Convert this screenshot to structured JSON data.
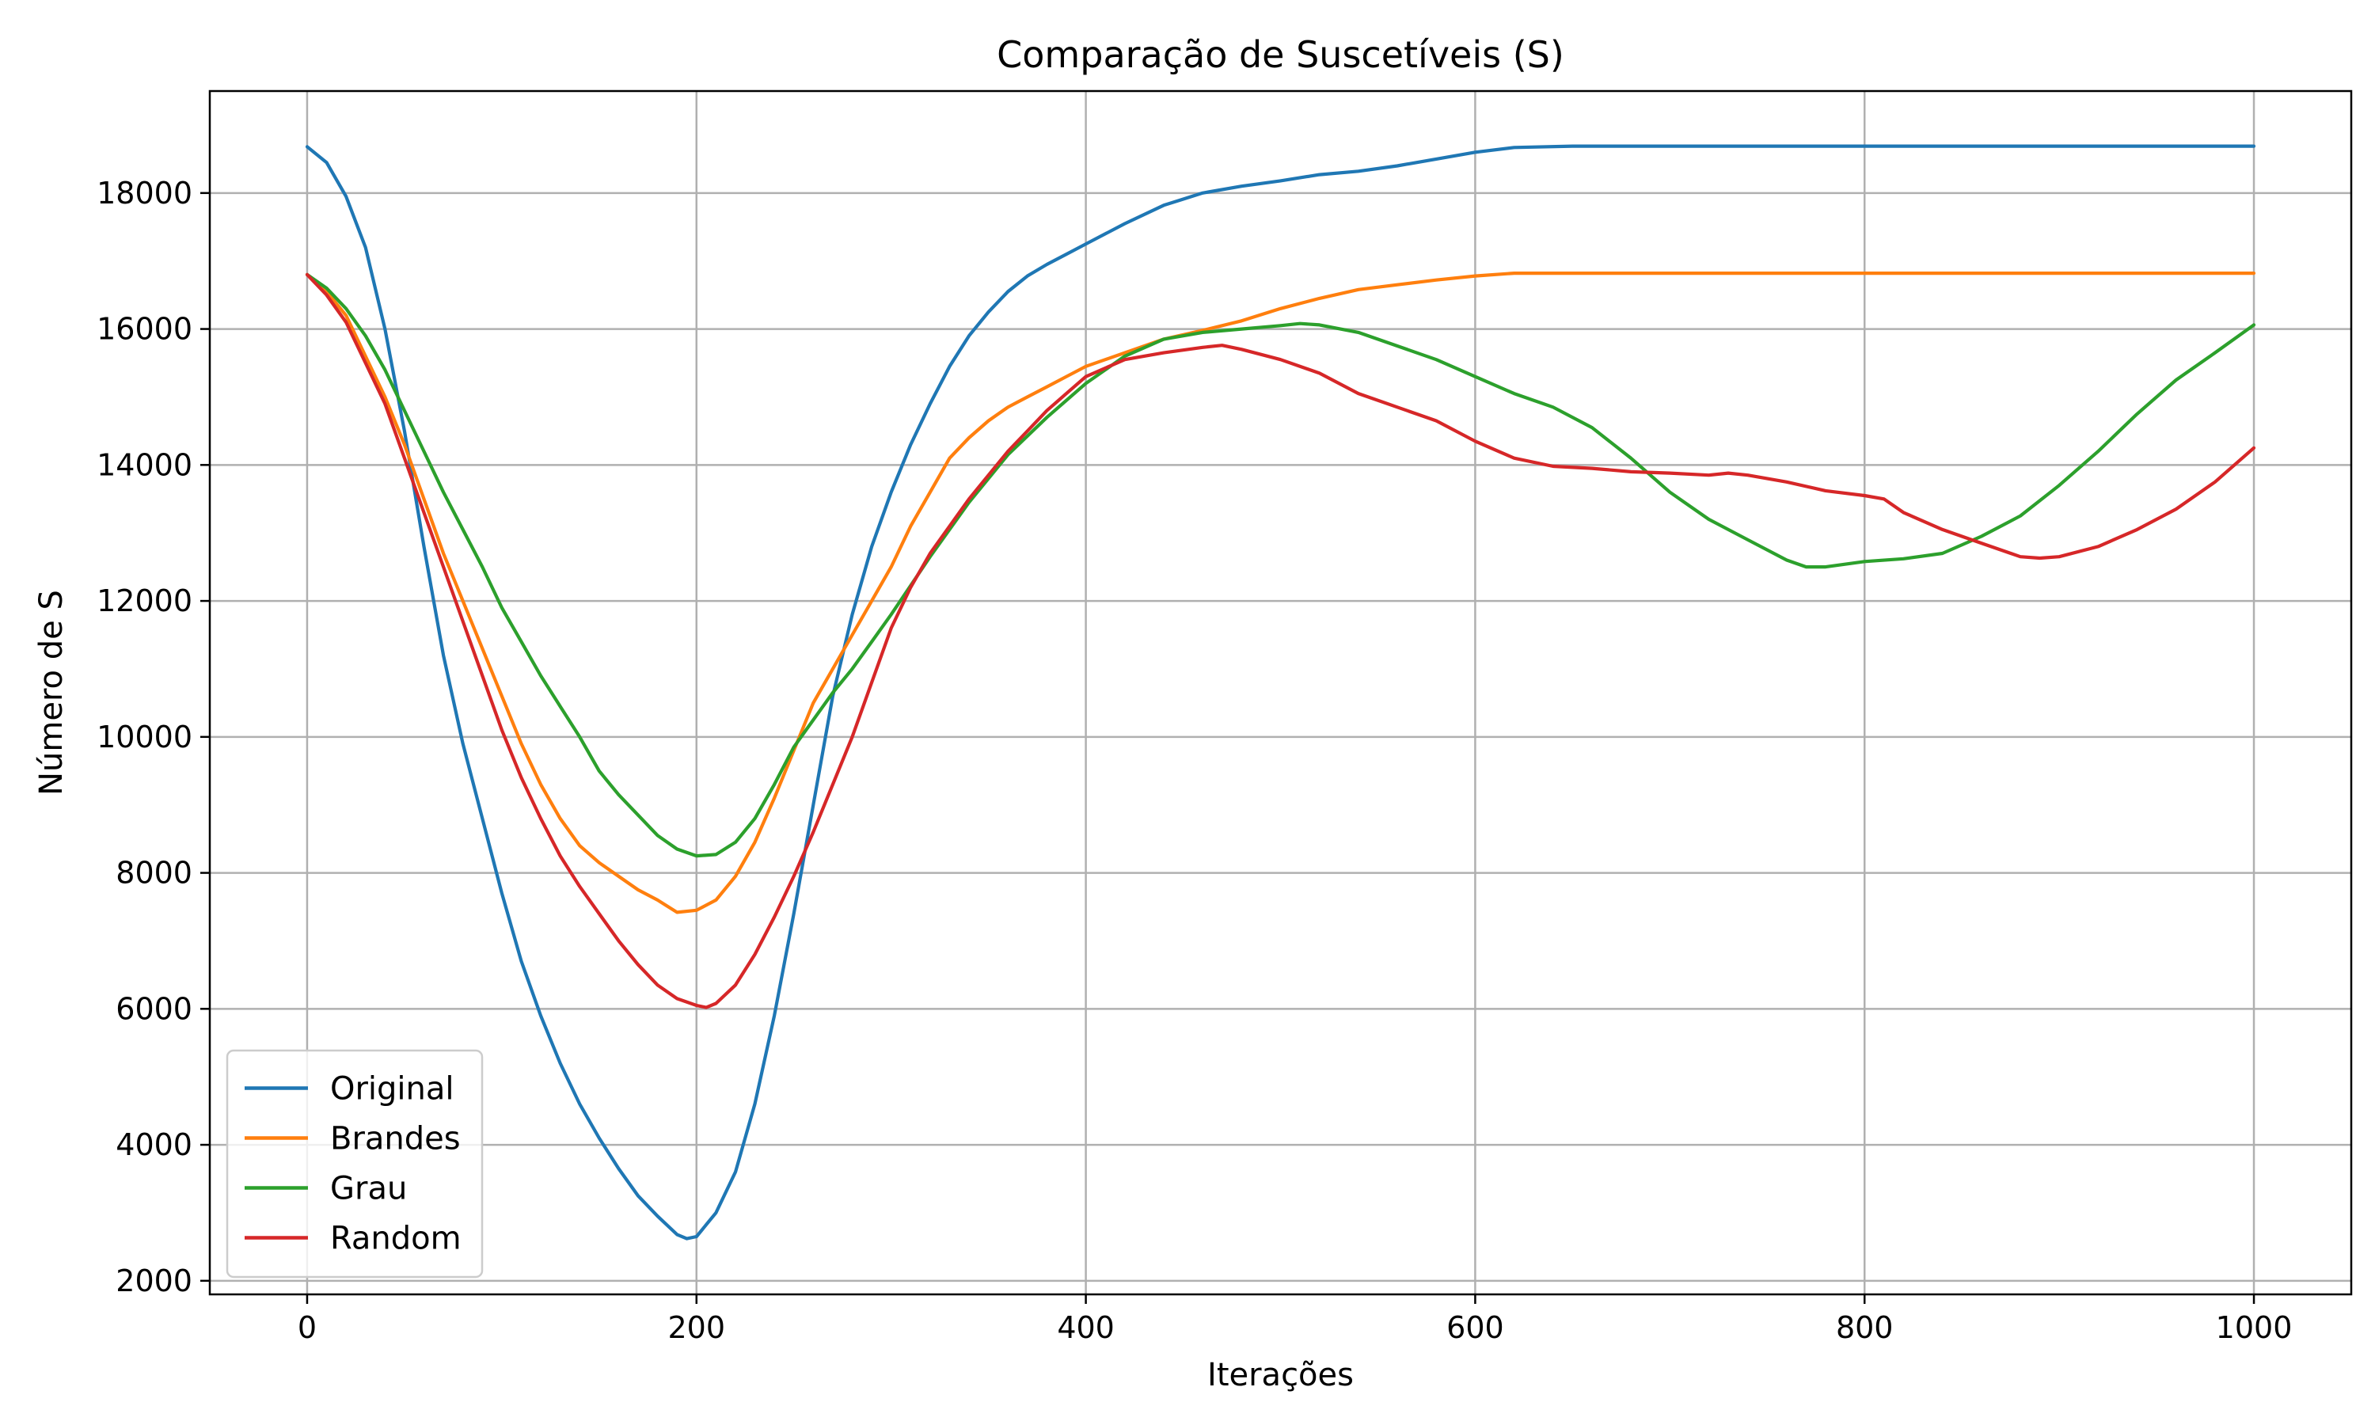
{
  "chart_data": {
    "type": "line",
    "title": "Comparação de Suscetíveis (S)",
    "xlabel": "Iterações",
    "ylabel": "Número de S",
    "xlim": [
      -50,
      1050
    ],
    "ylim": [
      1800,
      19500
    ],
    "xticks": [
      0,
      200,
      400,
      600,
      800,
      1000
    ],
    "yticks": [
      2000,
      4000,
      6000,
      8000,
      10000,
      12000,
      14000,
      16000,
      18000
    ],
    "grid": true,
    "legend_position": "lower left",
    "series": [
      {
        "name": "Original",
        "color": "#1f77b4",
        "x": [
          0,
          10,
          20,
          30,
          40,
          50,
          60,
          70,
          80,
          90,
          100,
          110,
          120,
          130,
          140,
          150,
          160,
          170,
          180,
          190,
          195,
          200,
          210,
          220,
          230,
          240,
          250,
          260,
          270,
          280,
          290,
          300,
          310,
          320,
          330,
          340,
          350,
          360,
          370,
          380,
          390,
          400,
          420,
          440,
          460,
          480,
          500,
          520,
          540,
          560,
          580,
          600,
          620,
          650,
          700,
          800,
          900,
          1000
        ],
        "y": [
          18680,
          18450,
          17950,
          17200,
          16000,
          14500,
          12800,
          11200,
          9900,
          8800,
          7700,
          6700,
          5900,
          5200,
          4600,
          4100,
          3650,
          3250,
          2950,
          2680,
          2620,
          2650,
          3000,
          3600,
          4600,
          5900,
          7400,
          9000,
          10600,
          11800,
          12800,
          13600,
          14300,
          14900,
          15450,
          15900,
          16250,
          16550,
          16780,
          16950,
          17100,
          17250,
          17550,
          17820,
          18000,
          18100,
          18180,
          18270,
          18320,
          18400,
          18500,
          18600,
          18670,
          18690,
          18690,
          18690,
          18690,
          18690
        ]
      },
      {
        "name": "Brandes",
        "color": "#ff7f0e",
        "x": [
          0,
          10,
          20,
          30,
          40,
          50,
          60,
          70,
          80,
          90,
          100,
          110,
          120,
          130,
          140,
          150,
          160,
          170,
          180,
          190,
          200,
          210,
          220,
          230,
          240,
          250,
          260,
          270,
          280,
          290,
          300,
          310,
          320,
          330,
          340,
          350,
          360,
          370,
          380,
          390,
          400,
          420,
          440,
          460,
          480,
          500,
          520,
          540,
          560,
          580,
          600,
          620,
          650,
          700,
          800,
          900,
          1000
        ],
        "y": [
          16800,
          16550,
          16200,
          15600,
          15000,
          14300,
          13500,
          12700,
          12000,
          11300,
          10600,
          9900,
          9300,
          8800,
          8400,
          8150,
          7950,
          7750,
          7600,
          7420,
          7450,
          7600,
          7950,
          8450,
          9100,
          9800,
          10500,
          11000,
          11500,
          12000,
          12500,
          13100,
          13600,
          14100,
          14400,
          14650,
          14850,
          15000,
          15150,
          15300,
          15450,
          15650,
          15850,
          15980,
          16120,
          16300,
          16450,
          16580,
          16650,
          16720,
          16780,
          16820,
          16820,
          16820,
          16820,
          16820,
          16820
        ]
      },
      {
        "name": "Grau",
        "color": "#2ca02c",
        "x": [
          0,
          10,
          20,
          30,
          40,
          50,
          60,
          70,
          80,
          90,
          100,
          110,
          120,
          130,
          140,
          150,
          160,
          170,
          180,
          190,
          200,
          210,
          220,
          230,
          240,
          250,
          260,
          270,
          280,
          290,
          300,
          320,
          340,
          360,
          380,
          400,
          420,
          440,
          460,
          480,
          500,
          510,
          520,
          540,
          560,
          580,
          600,
          620,
          640,
          660,
          680,
          700,
          720,
          740,
          760,
          770,
          780,
          800,
          820,
          840,
          860,
          880,
          900,
          920,
          940,
          960,
          980,
          1000
        ],
        "y": [
          16800,
          16600,
          16300,
          15900,
          15400,
          14800,
          14200,
          13600,
          13050,
          12500,
          11900,
          11400,
          10900,
          10450,
          10000,
          9500,
          9150,
          8850,
          8550,
          8350,
          8250,
          8270,
          8450,
          8800,
          9300,
          9850,
          10250,
          10650,
          11000,
          11400,
          11800,
          12650,
          13450,
          14150,
          14700,
          15200,
          15600,
          15850,
          15950,
          16000,
          16050,
          16080,
          16060,
          15950,
          15750,
          15550,
          15300,
          15050,
          14850,
          14550,
          14100,
          13600,
          13200,
          12900,
          12600,
          12500,
          12500,
          12580,
          12620,
          12700,
          12950,
          13250,
          13700,
          14200,
          14750,
          15250,
          15650,
          16060
        ]
      },
      {
        "name": "Random",
        "color": "#d62728",
        "x": [
          0,
          10,
          20,
          30,
          40,
          50,
          60,
          70,
          80,
          90,
          100,
          110,
          120,
          130,
          140,
          150,
          160,
          170,
          180,
          190,
          200,
          205,
          210,
          220,
          230,
          240,
          250,
          260,
          270,
          280,
          290,
          300,
          310,
          320,
          330,
          340,
          350,
          360,
          370,
          380,
          390,
          400,
          420,
          440,
          460,
          470,
          480,
          500,
          520,
          540,
          560,
          580,
          600,
          620,
          640,
          660,
          680,
          700,
          720,
          730,
          740,
          760,
          780,
          800,
          810,
          820,
          840,
          860,
          880,
          890,
          900,
          920,
          940,
          960,
          980,
          1000
        ],
        "y": [
          16800,
          16500,
          16100,
          15500,
          14900,
          14100,
          13300,
          12500,
          11700,
          10900,
          10100,
          9400,
          8800,
          8250,
          7800,
          7400,
          7000,
          6650,
          6350,
          6150,
          6050,
          6020,
          6080,
          6350,
          6800,
          7350,
          7950,
          8600,
          9300,
          10000,
          10800,
          11600,
          12200,
          12700,
          13100,
          13500,
          13850,
          14200,
          14500,
          14800,
          15050,
          15300,
          15550,
          15650,
          15730,
          15760,
          15700,
          15550,
          15350,
          15050,
          14850,
          14650,
          14350,
          14100,
          13980,
          13950,
          13900,
          13880,
          13850,
          13880,
          13850,
          13750,
          13620,
          13550,
          13500,
          13300,
          13050,
          12850,
          12650,
          12630,
          12650,
          12800,
          13050,
          13350,
          13750,
          14250
        ]
      }
    ]
  }
}
